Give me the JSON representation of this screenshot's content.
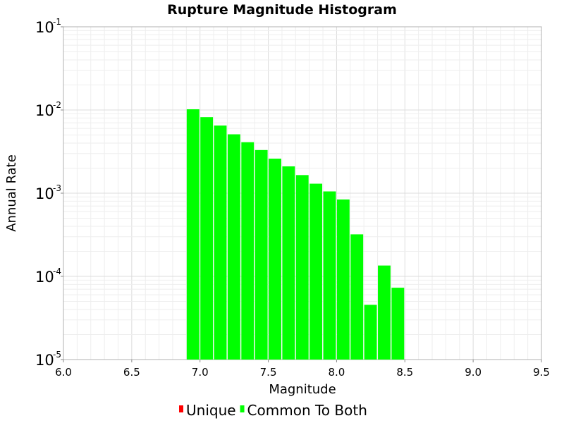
{
  "chart_data": {
    "type": "bar",
    "title": "Rupture Magnitude Histogram",
    "xlabel": "Magnitude",
    "ylabel": "Annual Rate",
    "xlim": [
      6.0,
      9.5
    ],
    "ylim": [
      1e-05,
      0.1
    ],
    "yscale": "log",
    "grid": true,
    "legend_position": "bottom",
    "x_ticks": [
      {
        "value": 6.0,
        "label": "6.0"
      },
      {
        "value": 6.5,
        "label": "6.5"
      },
      {
        "value": 7.0,
        "label": "7.0"
      },
      {
        "value": 7.5,
        "label": "7.5"
      },
      {
        "value": 8.0,
        "label": "8.0"
      },
      {
        "value": 8.5,
        "label": "8.5"
      },
      {
        "value": 9.0,
        "label": "9.0"
      },
      {
        "value": 9.5,
        "label": "9.5"
      }
    ],
    "y_ticks": [
      {
        "value": 0.1,
        "base": "10",
        "exp": "-1"
      },
      {
        "value": 0.01,
        "base": "10",
        "exp": "-2"
      },
      {
        "value": 0.001,
        "base": "10",
        "exp": "-3"
      },
      {
        "value": 0.0001,
        "base": "10",
        "exp": "-4"
      },
      {
        "value": 1e-05,
        "base": "10",
        "exp": "-5"
      }
    ],
    "bin_width": 0.1,
    "series": [
      {
        "name": "Unique",
        "color": "#ff0000",
        "x": [],
        "values": []
      },
      {
        "name": "Common To Both",
        "color": "#00ff00",
        "x": [
          6.95,
          7.05,
          7.15,
          7.25,
          7.35,
          7.45,
          7.55,
          7.65,
          7.75,
          7.85,
          7.95,
          8.05,
          8.15,
          8.25,
          8.35,
          8.45
        ],
        "values": [
          0.0102,
          0.0082,
          0.0065,
          0.0051,
          0.0041,
          0.0033,
          0.0026,
          0.0021,
          0.00165,
          0.0013,
          0.00105,
          0.00084,
          0.00032,
          4.55e-05,
          0.000135,
          7.3e-05
        ]
      }
    ]
  }
}
